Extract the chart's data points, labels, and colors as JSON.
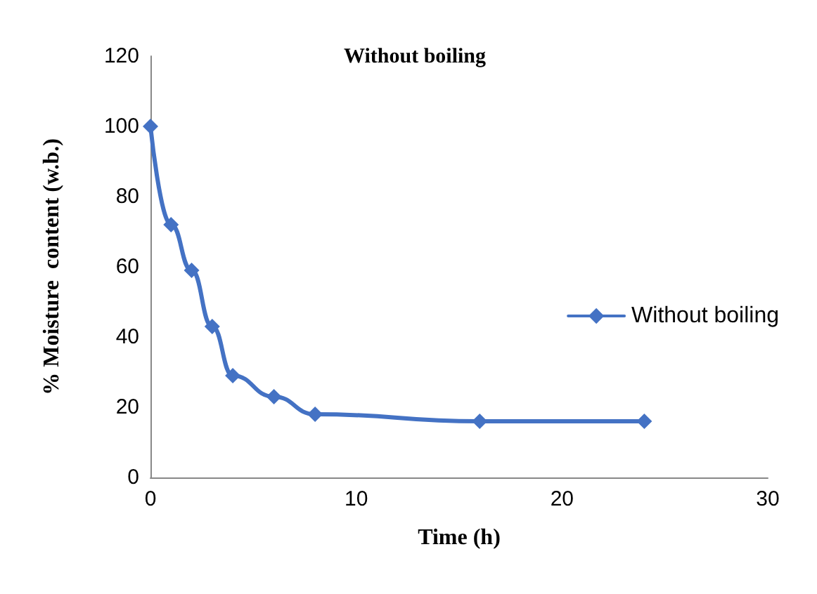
{
  "chart_data": {
    "type": "line",
    "title": "Without boiling",
    "xlabel": "Time (h)",
    "ylabel": "% Moisture  content (w.b.)",
    "x": [
      0,
      1,
      2,
      3,
      4,
      6,
      8,
      16,
      24
    ],
    "series": [
      {
        "name": "Without boiling",
        "color": "#4472c4",
        "values": [
          100,
          72,
          59,
          43,
          29,
          23,
          18,
          16,
          16
        ]
      }
    ],
    "xlim": [
      0,
      30
    ],
    "xticks": [
      0,
      10,
      20,
      30
    ],
    "ylim": [
      0,
      120
    ],
    "yticks": [
      0,
      20,
      40,
      60,
      80,
      100,
      120
    ],
    "grid": false,
    "legend": "right",
    "marker": "diamond",
    "line_style": "solid"
  }
}
